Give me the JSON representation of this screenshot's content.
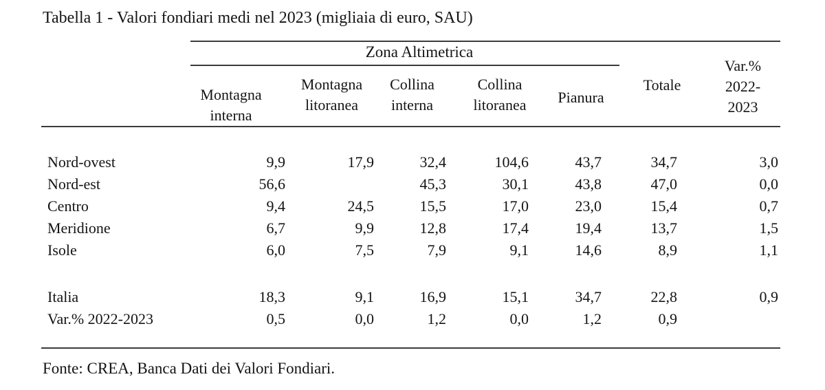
{
  "title": "Tabella 1 - Valori fondiari medi nel 2023 (migliaia di euro, SAU)",
  "table": {
    "spanner": "Zona Altimetrica",
    "columns": [
      {
        "name": "Montagna interna",
        "lines": [
          "Montagna",
          "interna"
        ]
      },
      {
        "name": "Montagna litoranea",
        "lines": [
          "Montagna",
          "litoranea"
        ]
      },
      {
        "name": "Collina interna",
        "lines": [
          "Collina",
          "interna"
        ]
      },
      {
        "name": "Collina litoranea",
        "lines": [
          "Collina",
          "litoranea"
        ]
      },
      {
        "name": "Pianura",
        "lines": [
          "Pianura"
        ]
      },
      {
        "name": "Totale",
        "lines": [
          "Totale"
        ]
      },
      {
        "name": "Var.% 2022-2023",
        "lines": [
          "Var.%",
          "2022-",
          "2023"
        ]
      }
    ],
    "rows": [
      {
        "label": "Nord-ovest",
        "values": [
          "9,9",
          "17,9",
          "32,4",
          "104,6",
          "43,7",
          "34,7",
          "3,0"
        ]
      },
      {
        "label": "Nord-est",
        "values": [
          "56,6",
          "",
          "45,3",
          "30,1",
          "43,8",
          "47,0",
          "0,0"
        ]
      },
      {
        "label": "Centro",
        "values": [
          "9,4",
          "24,5",
          "15,5",
          "17,0",
          "23,0",
          "15,4",
          "0,7"
        ]
      },
      {
        "label": "Meridione",
        "values": [
          "6,7",
          "9,9",
          "12,8",
          "17,4",
          "19,4",
          "13,7",
          "1,5"
        ]
      },
      {
        "label": "Isole",
        "values": [
          "6,0",
          "7,5",
          "7,9",
          "9,1",
          "14,6",
          "8,9",
          "1,1"
        ]
      },
      {
        "label": "Italia",
        "values": [
          "18,3",
          "9,1",
          "16,9",
          "15,1",
          "34,7",
          "22,8",
          "0,9"
        ]
      },
      {
        "label": "Var.% 2022-2023",
        "values": [
          "0,5",
          "0,0",
          "1,2",
          "0,0",
          "1,2",
          "0,9",
          ""
        ]
      }
    ],
    "source": "Fonte: CREA, Banca Dati dei Valori Fondiari."
  },
  "chart_data": {
    "type": "table",
    "title": "Tabella 1 - Valori fondiari medi nel 2023 (migliaia di euro, SAU)",
    "column_group_label": "Zona Altimetrica",
    "column_group_span": [
      "Montagna interna",
      "Montagna litoranea",
      "Collina interna",
      "Collina litoranea",
      "Pianura"
    ],
    "columns": [
      "Montagna interna",
      "Montagna litoranea",
      "Collina interna",
      "Collina litoranea",
      "Pianura",
      "Totale",
      "Var.% 2022-2023"
    ],
    "rows": [
      [
        "Nord-ovest",
        9.9,
        17.9,
        32.4,
        104.6,
        43.7,
        34.7,
        3.0
      ],
      [
        "Nord-est",
        56.6,
        null,
        45.3,
        30.1,
        43.8,
        47.0,
        0.0
      ],
      [
        "Centro",
        9.4,
        24.5,
        15.5,
        17.0,
        23.0,
        15.4,
        0.7
      ],
      [
        "Meridione",
        6.7,
        9.9,
        12.8,
        17.4,
        19.4,
        13.7,
        1.5
      ],
      [
        "Isole",
        6.0,
        7.5,
        7.9,
        9.1,
        14.6,
        8.9,
        1.1
      ],
      [
        "Italia",
        18.3,
        9.1,
        16.9,
        15.1,
        34.7,
        22.8,
        0.9
      ],
      [
        "Var.% 2022-2023",
        0.5,
        0.0,
        1.2,
        0.0,
        1.2,
        0.9,
        null
      ]
    ],
    "source": "Fonte: CREA, Banca Dati dei Valori Fondiari."
  }
}
